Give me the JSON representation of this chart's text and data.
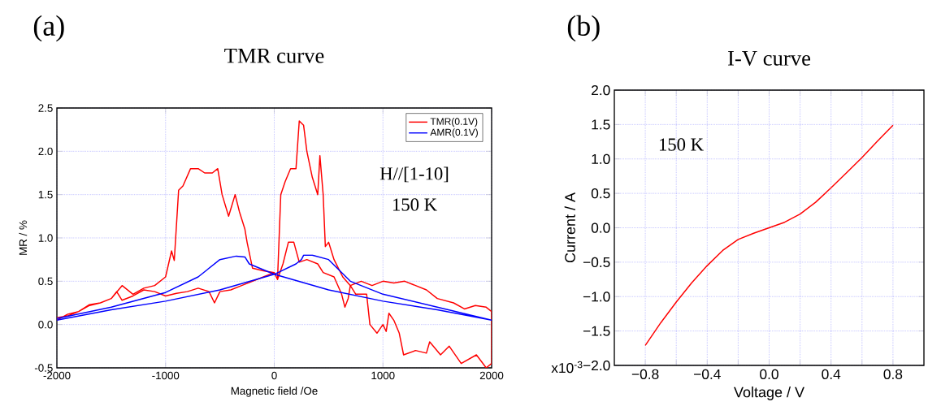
{
  "chart_data": [
    {
      "type": "line",
      "title": "TMR curve",
      "xlabel": "Magnetic field /Oe",
      "ylabel": "MR / %",
      "annotations": [
        "(a)",
        "H//[1-10]",
        "150 K"
      ],
      "xlim": [
        -2000,
        2000
      ],
      "xticks": [
        -2000,
        -1000,
        0,
        1000,
        2000
      ],
      "ylim": [
        -0.5,
        2.5
      ],
      "yticks": [
        -0.5,
        {
          "value": 0,
          "label": "0.0"
        },
        0.5,
        {
          "value": 1,
          "label": "1.0"
        },
        1.5,
        {
          "value": 2,
          "label": "2.0"
        },
        2.5
      ],
      "grid": true,
      "legend": "top right",
      "marker": "none",
      "line_style": "solid",
      "series": [
        {
          "name": "TMR(0.1V)",
          "color": "#ff0000",
          "x": [
            -2000,
            -1900,
            -1800,
            -1700,
            -1600,
            -1500,
            -1450,
            -1400,
            -1300,
            -1200,
            -1100,
            -1000,
            -900,
            -800,
            -700,
            -600,
            -550,
            -500,
            -400,
            -300,
            -200,
            -100,
            0,
            30,
            60,
            100,
            150,
            200,
            230,
            270,
            300,
            350,
            400,
            420,
            450,
            470,
            500,
            550,
            630,
            700,
            750,
            850,
            880,
            945,
            1000,
            1030,
            1055,
            1100,
            1150,
            1190,
            1300,
            1400,
            1430,
            1530,
            1610,
            1720,
            1860,
            1950,
            2000,
            2000,
            1950,
            1850,
            1750,
            1650,
            1500,
            1400,
            1300,
            1200,
            1100,
            1000,
            900,
            800,
            700,
            680,
            650,
            620,
            550,
            450,
            400,
            300,
            230,
            180,
            130,
            80,
            30,
            0,
            -100,
            -200,
            -250,
            -270,
            -320,
            -360,
            -420,
            -480,
            -520,
            -570,
            -640,
            -700,
            -770,
            -840,
            -880,
            -920,
            -945,
            -1000,
            -1100,
            -1200,
            -1300,
            -1400,
            -1500,
            -1600,
            -1700,
            -1800,
            -1900,
            -2000
          ],
          "values": [
            0.05,
            0.12,
            0.15,
            0.22,
            0.25,
            0.3,
            0.38,
            0.28,
            0.33,
            0.4,
            0.38,
            0.33,
            0.36,
            0.38,
            0.42,
            0.38,
            0.25,
            0.38,
            0.4,
            0.45,
            0.5,
            0.55,
            0.6,
            0.52,
            1.5,
            1.65,
            1.8,
            1.8,
            2.35,
            2.3,
            2.0,
            1.7,
            1.5,
            1.95,
            1.5,
            0.9,
            0.95,
            0.75,
            0.55,
            0.45,
            0.35,
            0.35,
            0.0,
            -0.1,
            0.0,
            -0.08,
            0.13,
            0.05,
            -0.1,
            -0.35,
            -0.3,
            -0.33,
            -0.2,
            -0.35,
            -0.25,
            -0.45,
            -0.35,
            -0.5,
            -0.45,
            0.15,
            0.2,
            0.22,
            0.18,
            0.25,
            0.3,
            0.4,
            0.45,
            0.5,
            0.48,
            0.5,
            0.45,
            0.5,
            0.45,
            0.3,
            0.2,
            0.35,
            0.55,
            0.6,
            0.7,
            0.75,
            0.72,
            0.95,
            0.95,
            0.7,
            0.52,
            0.6,
            0.62,
            0.65,
            0.95,
            1.1,
            1.3,
            1.5,
            1.25,
            1.5,
            1.8,
            1.75,
            1.75,
            1.8,
            1.8,
            1.6,
            1.55,
            0.74,
            0.85,
            0.55,
            0.45,
            0.42,
            0.35,
            0.45,
            0.3,
            0.25,
            0.23,
            0.15,
            0.1,
            0.08
          ]
        },
        {
          "name": "AMR(0.1V)",
          "color": "#0000ff",
          "x": [
            -2000,
            -1500,
            -1000,
            -500,
            0,
            200,
            250,
            270,
            350,
            500,
            700,
            1000,
            1500,
            2000,
            2000,
            1500,
            1000,
            500,
            0,
            -230,
            -270,
            -350,
            -500,
            -700,
            -1000,
            -1500,
            -2000
          ],
          "values": [
            0.05,
            0.17,
            0.27,
            0.4,
            0.58,
            0.7,
            0.75,
            0.8,
            0.8,
            0.75,
            0.5,
            0.35,
            0.2,
            0.05,
            0.05,
            0.17,
            0.27,
            0.4,
            0.58,
            0.7,
            0.78,
            0.79,
            0.75,
            0.55,
            0.37,
            0.2,
            0.07
          ]
        }
      ]
    },
    {
      "type": "line",
      "title": "I-V curve",
      "xlabel": "Voltage / V",
      "ylabel": "Current / A",
      "annotations": [
        "(b)",
        "150 K",
        "x10$^{-3}$"
      ],
      "xlim": [
        -1.0,
        1.0
      ],
      "xticks": [
        {
          "value": -0.8,
          "label": "−0.8"
        },
        {
          "value": -0.6,
          "label": null
        },
        {
          "value": -0.4,
          "label": "−0.4"
        },
        {
          "value": -0.2,
          "label": null
        },
        {
          "value": 0,
          "label": "0.0"
        },
        {
          "value": 0.2,
          "label": null
        },
        0.4,
        {
          "value": 0.6,
          "label": null
        },
        0.8
      ],
      "ylim": [
        -2.0,
        2.0
      ],
      "yticks": [
        {
          "value": -2.0,
          "label": "−2.0"
        },
        {
          "value": -1.5,
          "label": "−1.5"
        },
        {
          "value": -1.0,
          "label": "−1.0"
        },
        {
          "value": -0.5,
          "label": "−0.5"
        },
        {
          "value": 0,
          "label": "0.0"
        },
        0.5,
        {
          "value": 1.0,
          "label": "1.0"
        },
        1.5,
        {
          "value": 2.0,
          "label": "2.0"
        }
      ],
      "grid": true,
      "marker": "none",
      "line_style": "solid",
      "series": [
        {
          "color": "#ff0000",
          "x": [
            -0.8,
            -0.7,
            -0.6,
            -0.5,
            -0.4,
            -0.3,
            -0.2,
            -0.1,
            0.0,
            0.1,
            0.2,
            0.3,
            0.4,
            0.5,
            0.6,
            0.7,
            0.8
          ],
          "values": [
            -1.71,
            -1.38,
            -1.08,
            -0.8,
            -0.55,
            -0.33,
            -0.17,
            -0.08,
            0.0,
            0.08,
            0.2,
            0.37,
            0.58,
            0.8,
            1.02,
            1.26,
            1.49
          ]
        }
      ]
    }
  ]
}
